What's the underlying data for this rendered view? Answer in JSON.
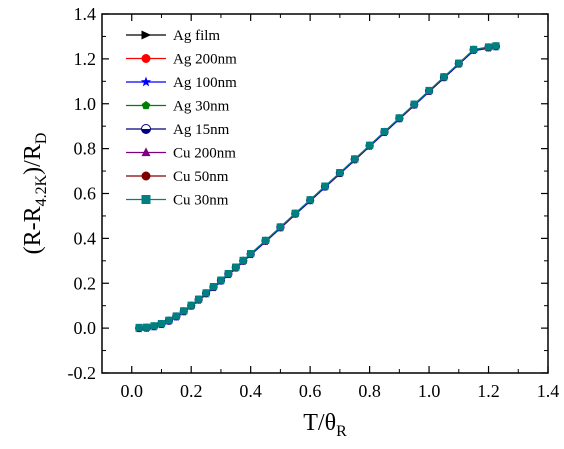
{
  "chart_data": {
    "type": "scatter",
    "title": "",
    "xlabel": {
      "main": "T/θ",
      "sub": "R"
    },
    "ylabel": {
      "parts": [
        {
          "text": "(R-R",
          "sub": false
        },
        {
          "text": "4.2K",
          "sub": true
        },
        {
          "text": ")/R",
          "sub": false
        },
        {
          "text": "D",
          "sub": true
        }
      ]
    },
    "xlim": [
      -0.1,
      1.4
    ],
    "ylim": [
      -0.2,
      1.4
    ],
    "x_ticks": [
      "0.0",
      "0.2",
      "0.4",
      "0.6",
      "0.8",
      "1.0",
      "1.2",
      "1.4"
    ],
    "y_ticks": [
      "-0.2",
      "0.0",
      "0.2",
      "0.4",
      "0.6",
      "0.8",
      "1.0",
      "1.2",
      "1.4"
    ],
    "grid": false,
    "legend_position": "top-left",
    "x": [
      0.025,
      0.05,
      0.075,
      0.1,
      0.125,
      0.15,
      0.175,
      0.2,
      0.225,
      0.25,
      0.275,
      0.3,
      0.325,
      0.35,
      0.375,
      0.4,
      0.45,
      0.5,
      0.55,
      0.6,
      0.65,
      0.7,
      0.75,
      0.8,
      0.85,
      0.9,
      0.95,
      1.0,
      1.05,
      1.1,
      1.15,
      1.2,
      1.225
    ],
    "series": [
      {
        "name": "Ag film",
        "color": "#000000",
        "marker": "triangle-right",
        "y": [
          0.0,
          0.002,
          0.008,
          0.018,
          0.033,
          0.052,
          0.075,
          0.1,
          0.127,
          0.155,
          0.183,
          0.212,
          0.241,
          0.27,
          0.3,
          0.33,
          0.389,
          0.449,
          0.51,
          0.57,
          0.631,
          0.691,
          0.752,
          0.813,
          0.874,
          0.935,
          0.996,
          1.057,
          1.118,
          1.179,
          1.24,
          1.251,
          1.256
        ]
      },
      {
        "name": "Ag 200nm",
        "color": "#ff0000",
        "marker": "circle",
        "y": [
          0.0,
          0.002,
          0.008,
          0.018,
          0.033,
          0.052,
          0.075,
          0.1,
          0.127,
          0.155,
          0.183,
          0.212,
          0.241,
          0.27,
          0.3,
          0.33,
          0.389,
          0.449,
          0.51,
          0.57,
          0.631,
          0.691,
          0.752,
          0.813,
          0.874,
          0.935,
          0.996,
          1.057,
          1.118,
          1.179,
          1.24,
          1.251,
          1.256
        ]
      },
      {
        "name": "Ag 100nm",
        "color": "#0000ff",
        "marker": "star",
        "y": [
          -0.004,
          -0.002,
          0.004,
          0.014,
          0.029,
          0.048,
          0.071,
          0.096,
          0.123,
          0.151,
          0.179,
          0.208,
          0.237,
          0.266,
          0.296,
          0.326,
          0.385,
          0.445,
          0.506,
          0.566,
          0.627,
          0.687,
          0.748,
          0.809,
          0.87,
          0.931,
          0.992,
          1.053,
          1.114,
          1.175,
          1.236,
          1.247,
          1.252
        ]
      },
      {
        "name": "Ag 30nm",
        "color": "#008000",
        "marker": "pentagon",
        "y": [
          0.0,
          0.002,
          0.008,
          0.018,
          0.033,
          0.052,
          0.075,
          0.1,
          0.127,
          0.155,
          0.183,
          0.212,
          0.241,
          0.27,
          0.3,
          0.33,
          0.389,
          0.449,
          0.51,
          0.57,
          0.631,
          0.691,
          0.752,
          0.813,
          0.874,
          0.935,
          0.996,
          1.057,
          1.118,
          1.179,
          1.24,
          1.251,
          1.256
        ]
      },
      {
        "name": "Ag 15nm",
        "color": "#000080",
        "marker": "half-circle",
        "y": [
          0.0,
          0.002,
          0.008,
          0.018,
          0.033,
          0.052,
          0.075,
          0.1,
          0.127,
          0.155,
          0.183,
          0.212,
          0.241,
          0.27,
          0.3,
          0.33,
          0.389,
          0.449,
          0.51,
          0.57,
          0.631,
          0.691,
          0.752,
          0.813,
          0.874,
          0.935,
          0.996,
          1.057,
          1.118,
          1.179,
          1.24,
          1.251,
          1.256
        ]
      },
      {
        "name": "Cu 200nm",
        "color": "#800080",
        "marker": "triangle-up",
        "y": [
          0.0,
          0.002,
          0.008,
          0.018,
          0.033,
          0.052,
          0.075,
          0.1,
          0.127,
          0.155,
          0.183,
          0.212,
          0.241,
          0.27,
          0.3,
          0.33,
          0.389,
          0.449,
          0.51,
          0.57,
          0.631,
          0.691,
          0.752,
          0.813,
          0.874,
          0.935,
          0.996,
          1.057,
          1.118,
          1.179,
          1.24,
          1.251,
          1.256
        ]
      },
      {
        "name": "Cu 50nm",
        "color": "#800000",
        "marker": "circle",
        "y": [
          0.0,
          0.002,
          0.008,
          0.018,
          0.033,
          0.052,
          0.075,
          0.1,
          0.127,
          0.155,
          0.183,
          0.212,
          0.241,
          0.27,
          0.3,
          0.33,
          0.389,
          0.449,
          0.51,
          0.57,
          0.631,
          0.691,
          0.752,
          0.813,
          0.874,
          0.935,
          0.996,
          1.057,
          1.118,
          1.179,
          1.24,
          1.251,
          1.256
        ]
      },
      {
        "name": "Cu 30nm",
        "color": "#008080",
        "marker": "square",
        "y": [
          0.003,
          0.004,
          0.01,
          0.02,
          0.035,
          0.054,
          0.077,
          0.102,
          0.129,
          0.157,
          0.185,
          0.214,
          0.243,
          0.272,
          0.302,
          0.332,
          0.391,
          0.451,
          0.512,
          0.572,
          0.633,
          0.693,
          0.754,
          0.815,
          0.876,
          0.937,
          0.998,
          1.059,
          1.12,
          1.181,
          1.242,
          1.253,
          1.258
        ]
      }
    ]
  }
}
